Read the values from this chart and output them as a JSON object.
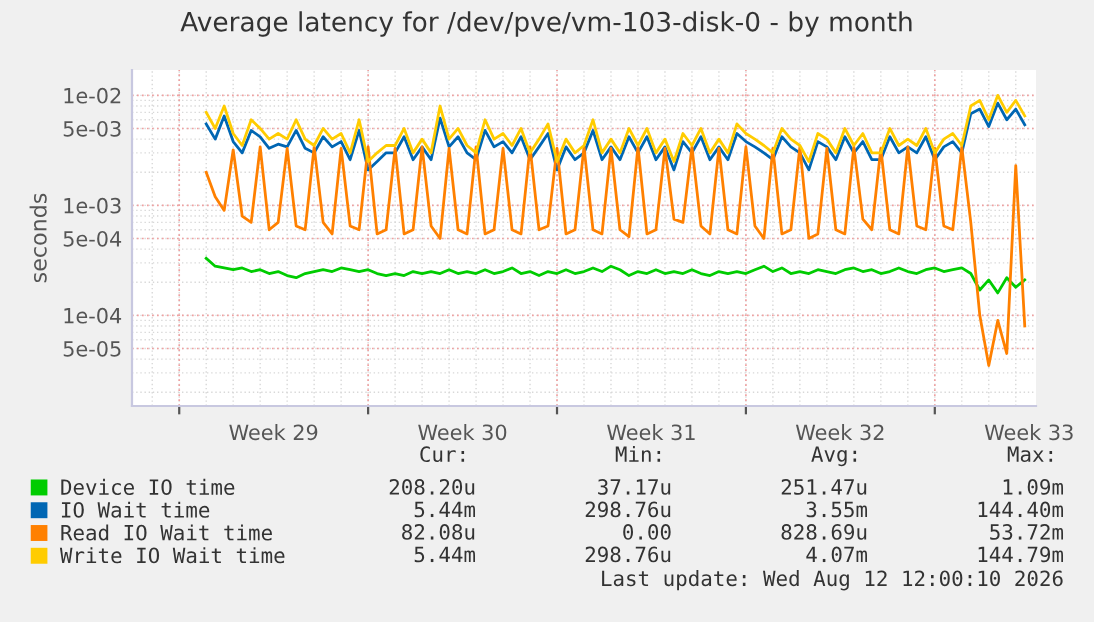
{
  "chart_data": {
    "type": "line",
    "title": "Average latency for /dev/pve/vm-103-disk-0 - by month",
    "ylabel": "seconds",
    "log": "y",
    "grid": true,
    "legend": "bottom",
    "xlim": [
      "2026-07-11T06:00",
      "2026-08-13T18:00"
    ],
    "xticks": [
      {
        "value": "2026-07-13",
        "label": null
      },
      {
        "value": "2026-07-16T12:00",
        "label": "Week 29"
      },
      {
        "value": "2026-07-20",
        "label": null
      },
      {
        "value": "2026-07-23T12:00",
        "label": "Week 30"
      },
      {
        "value": "2026-07-27",
        "label": null
      },
      {
        "value": "2026-07-30T12:00",
        "label": "Week 31"
      },
      {
        "value": "2026-08-03",
        "label": null
      },
      {
        "value": "2026-08-06T12:00",
        "label": "Week 32"
      },
      {
        "value": "2026-08-10",
        "label": null
      },
      {
        "value": "2026-08-13T12:00",
        "label": "Week 33"
      }
    ],
    "ylim": [
      1.5e-05,
      0.017
    ],
    "yticks": [
      {
        "value": 5e-05,
        "label": "5e-05"
      },
      {
        "value": 0.0001,
        "label": "1e-04"
      },
      {
        "value": 0.0005,
        "label": "5e-04"
      },
      {
        "value": 0.001,
        "label": "1e-03"
      },
      {
        "value": 0.005,
        "label": "5e-03"
      },
      {
        "value": 0.01,
        "label": "1e-02"
      }
    ],
    "x": [
      "2026-07-14T00:00",
      "2026-07-14T08:00",
      "2026-07-14T16:00",
      "2026-07-15T00:00",
      "2026-07-15T08:00",
      "2026-07-15T16:00",
      "2026-07-16T00:00",
      "2026-07-16T08:00",
      "2026-07-16T16:00",
      "2026-07-17T00:00",
      "2026-07-17T08:00",
      "2026-07-17T16:00",
      "2026-07-18T00:00",
      "2026-07-18T08:00",
      "2026-07-18T16:00",
      "2026-07-19T00:00",
      "2026-07-19T08:00",
      "2026-07-19T16:00",
      "2026-07-20T00:00",
      "2026-07-20T08:00",
      "2026-07-20T16:00",
      "2026-07-21T00:00",
      "2026-07-21T08:00",
      "2026-07-21T16:00",
      "2026-07-22T00:00",
      "2026-07-22T08:00",
      "2026-07-22T16:00",
      "2026-07-23T00:00",
      "2026-07-23T08:00",
      "2026-07-23T16:00",
      "2026-07-24T00:00",
      "2026-07-24T08:00",
      "2026-07-24T16:00",
      "2026-07-25T00:00",
      "2026-07-25T08:00",
      "2026-07-25T16:00",
      "2026-07-26T00:00",
      "2026-07-26T08:00",
      "2026-07-26T16:00",
      "2026-07-27T00:00",
      "2026-07-27T08:00",
      "2026-07-27T16:00",
      "2026-07-28T00:00",
      "2026-07-28T08:00",
      "2026-07-28T16:00",
      "2026-07-29T00:00",
      "2026-07-29T08:00",
      "2026-07-29T16:00",
      "2026-07-30T00:00",
      "2026-07-30T08:00",
      "2026-07-30T16:00",
      "2026-07-31T00:00",
      "2026-07-31T08:00",
      "2026-07-31T16:00",
      "2026-08-01T00:00",
      "2026-08-01T08:00",
      "2026-08-01T16:00",
      "2026-08-02T00:00",
      "2026-08-02T08:00",
      "2026-08-02T16:00",
      "2026-08-03T00:00",
      "2026-08-03T08:00",
      "2026-08-03T16:00",
      "2026-08-04T00:00",
      "2026-08-04T08:00",
      "2026-08-04T16:00",
      "2026-08-05T00:00",
      "2026-08-05T08:00",
      "2026-08-05T16:00",
      "2026-08-06T00:00",
      "2026-08-06T08:00",
      "2026-08-06T16:00",
      "2026-08-07T00:00",
      "2026-08-07T08:00",
      "2026-08-07T16:00",
      "2026-08-08T00:00",
      "2026-08-08T08:00",
      "2026-08-08T16:00",
      "2026-08-09T00:00",
      "2026-08-09T08:00",
      "2026-08-09T16:00",
      "2026-08-10T00:00",
      "2026-08-10T08:00",
      "2026-08-10T16:00",
      "2026-08-11T00:00",
      "2026-08-11T08:00",
      "2026-08-11T16:00",
      "2026-08-12T00:00",
      "2026-08-12T08:00",
      "2026-08-12T16:00",
      "2026-08-13T00:00",
      "2026-08-13T08:00"
    ],
    "series": [
      {
        "name": "Device IO time",
        "color": "#00cc00",
        "values": [
          0.00033,
          0.00028,
          0.00027,
          0.00026,
          0.00027,
          0.00025,
          0.00026,
          0.00024,
          0.00025,
          0.00023,
          0.00022,
          0.00024,
          0.00025,
          0.00026,
          0.00025,
          0.00027,
          0.00026,
          0.00025,
          0.00026,
          0.00024,
          0.00023,
          0.00024,
          0.00023,
          0.00025,
          0.00024,
          0.00025,
          0.00024,
          0.00026,
          0.00024,
          0.00025,
          0.00024,
          0.00026,
          0.00024,
          0.00025,
          0.00027,
          0.00024,
          0.00025,
          0.00023,
          0.00025,
          0.00024,
          0.00026,
          0.00024,
          0.00025,
          0.00027,
          0.00025,
          0.00028,
          0.00026,
          0.00023,
          0.00025,
          0.00024,
          0.00026,
          0.00024,
          0.00025,
          0.00024,
          0.00026,
          0.00024,
          0.00023,
          0.00025,
          0.00024,
          0.00025,
          0.00024,
          0.00026,
          0.00028,
          0.00025,
          0.00027,
          0.00024,
          0.00025,
          0.00024,
          0.00026,
          0.00025,
          0.00024,
          0.00026,
          0.00027,
          0.00025,
          0.00026,
          0.00024,
          0.00025,
          0.00027,
          0.00025,
          0.00024,
          0.00026,
          0.00027,
          0.00025,
          0.00026,
          0.00027,
          0.00024,
          0.00017,
          0.00021,
          0.00016,
          0.00022,
          0.00018,
          0.00021
        ]
      },
      {
        "name": "IO Wait time",
        "color": "#0066b3",
        "values": [
          0.0055,
          0.004,
          0.0065,
          0.0038,
          0.003,
          0.0048,
          0.0042,
          0.0033,
          0.0036,
          0.0034,
          0.0048,
          0.0033,
          0.003,
          0.0042,
          0.0034,
          0.0038,
          0.0026,
          0.0048,
          0.0021,
          0.0025,
          0.003,
          0.003,
          0.0042,
          0.0026,
          0.0034,
          0.0026,
          0.0062,
          0.0034,
          0.0042,
          0.003,
          0.0026,
          0.0048,
          0.0034,
          0.0038,
          0.003,
          0.0042,
          0.0026,
          0.0034,
          0.0045,
          0.0021,
          0.0034,
          0.0026,
          0.003,
          0.0048,
          0.0026,
          0.0034,
          0.0026,
          0.0042,
          0.003,
          0.0042,
          0.0026,
          0.0034,
          0.0021,
          0.0038,
          0.003,
          0.0042,
          0.0026,
          0.0034,
          0.0026,
          0.0045,
          0.0038,
          0.0034,
          0.003,
          0.0026,
          0.0042,
          0.0034,
          0.003,
          0.0021,
          0.0038,
          0.0034,
          0.0026,
          0.0042,
          0.003,
          0.0038,
          0.0026,
          0.0026,
          0.0042,
          0.003,
          0.0034,
          0.003,
          0.0042,
          0.0026,
          0.0034,
          0.0038,
          0.003,
          0.0068,
          0.0075,
          0.0052,
          0.0085,
          0.006,
          0.0075,
          0.0054
        ]
      },
      {
        "name": "Read IO Wait time",
        "color": "#ff8000",
        "values": [
          0.002,
          0.0012,
          0.0009,
          0.0032,
          0.0008,
          0.0007,
          0.0034,
          0.0006,
          0.0007,
          0.0033,
          0.00065,
          0.0006,
          0.0034,
          0.0007,
          0.00055,
          0.0033,
          0.00065,
          0.0006,
          0.0034,
          0.00055,
          0.0006,
          0.0033,
          0.00055,
          0.0006,
          0.0034,
          0.00065,
          0.0005,
          0.0033,
          0.0006,
          0.00055,
          0.0034,
          0.00055,
          0.0006,
          0.0033,
          0.0006,
          0.00055,
          0.0034,
          0.0006,
          0.00065,
          0.0033,
          0.00055,
          0.0006,
          0.0034,
          0.0006,
          0.00055,
          0.0033,
          0.0006,
          0.00052,
          0.0034,
          0.00055,
          0.0006,
          0.0033,
          0.00075,
          0.0007,
          0.0034,
          0.00065,
          0.00055,
          0.0033,
          0.0006,
          0.00055,
          0.0034,
          0.00065,
          0.0005,
          0.0033,
          0.00055,
          0.0006,
          0.0034,
          0.0005,
          0.00055,
          0.0033,
          0.0006,
          0.00055,
          0.0034,
          0.00075,
          0.0006,
          0.0033,
          0.0006,
          0.00055,
          0.0034,
          0.00065,
          0.0006,
          0.0033,
          0.00065,
          0.0006,
          0.0034,
          0.0007,
          0.0001,
          3.5e-05,
          9e-05,
          4.5e-05,
          0.0023,
          8e-05
        ]
      },
      {
        "name": "Write IO Wait time",
        "color": "#ffcc00",
        "values": [
          0.007,
          0.005,
          0.008,
          0.0045,
          0.0035,
          0.006,
          0.005,
          0.004,
          0.0045,
          0.004,
          0.006,
          0.004,
          0.0035,
          0.005,
          0.004,
          0.0045,
          0.003,
          0.006,
          0.0025,
          0.003,
          0.0035,
          0.0035,
          0.005,
          0.003,
          0.004,
          0.003,
          0.008,
          0.004,
          0.005,
          0.0035,
          0.003,
          0.006,
          0.004,
          0.0045,
          0.0035,
          0.005,
          0.003,
          0.004,
          0.0055,
          0.0025,
          0.004,
          0.003,
          0.0035,
          0.006,
          0.003,
          0.004,
          0.003,
          0.005,
          0.0035,
          0.005,
          0.003,
          0.004,
          0.0025,
          0.0045,
          0.0035,
          0.005,
          0.003,
          0.004,
          0.003,
          0.0055,
          0.0045,
          0.004,
          0.0035,
          0.003,
          0.005,
          0.004,
          0.0035,
          0.0025,
          0.0045,
          0.004,
          0.003,
          0.005,
          0.0035,
          0.0045,
          0.003,
          0.003,
          0.005,
          0.0035,
          0.004,
          0.0035,
          0.005,
          0.003,
          0.004,
          0.0045,
          0.0035,
          0.008,
          0.009,
          0.006,
          0.01,
          0.007,
          0.009,
          0.0065
        ]
      }
    ],
    "annotations": [
      "Cur:",
      "Min:",
      "Avg:",
      "Max:",
      "208.20u",
      "37.17u",
      "251.47u",
      "1.09m",
      "5.44m",
      "298.76u",
      "3.55m",
      "144.40m",
      "82.08u",
      "0.00",
      "828.69u",
      "53.72m",
      "5.44m",
      "298.76u",
      "4.07m",
      "144.79m",
      "Last update: Wed Aug 12 12:00:10 2026"
    ]
  }
}
